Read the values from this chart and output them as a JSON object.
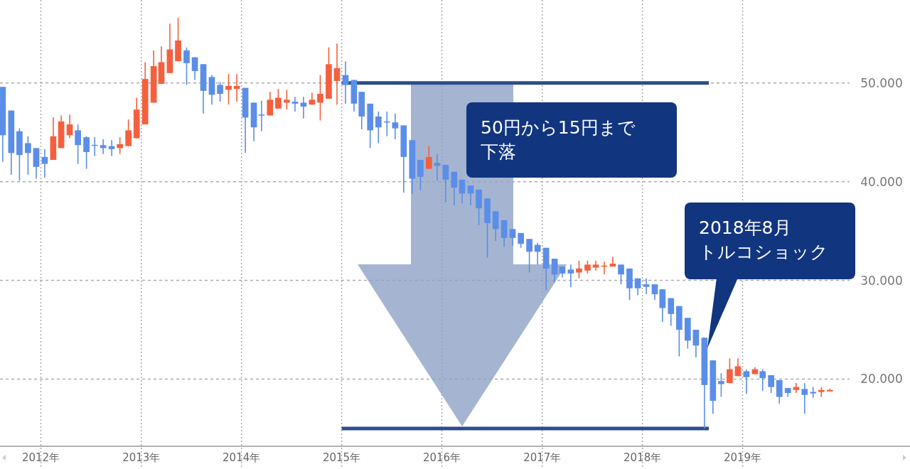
{
  "chart_data": {
    "type": "candlestick",
    "x": [
      "2011-08-15",
      "2011-09-15",
      "2011-10-15",
      "2011-11-15",
      "2011-12-15",
      "2012-01-15",
      "2012-02-15",
      "2012-03-15",
      "2012-04-15",
      "2012-05-15",
      "2012-06-15",
      "2012-07-15",
      "2012-08-15",
      "2012-09-15",
      "2012-10-15",
      "2012-11-15",
      "2012-12-15",
      "2013-01-15",
      "2013-02-15",
      "2013-03-15",
      "2013-04-15",
      "2013-05-15",
      "2013-06-15",
      "2013-07-15",
      "2013-08-15",
      "2013-09-15",
      "2013-10-15",
      "2013-11-15",
      "2013-12-15",
      "2014-01-15",
      "2014-02-15",
      "2014-03-15",
      "2014-04-15",
      "2014-05-15",
      "2014-06-15",
      "2014-07-15",
      "2014-08-15",
      "2014-09-15",
      "2014-10-15",
      "2014-11-15",
      "2014-12-15",
      "2015-01-15",
      "2015-02-15",
      "2015-03-15",
      "2015-04-15",
      "2015-05-15",
      "2015-06-15",
      "2015-07-15",
      "2015-08-15",
      "2015-09-15",
      "2015-10-15",
      "2015-11-15",
      "2015-12-15",
      "2016-01-15",
      "2016-02-15",
      "2016-03-15",
      "2016-04-15",
      "2016-05-15",
      "2016-06-15",
      "2016-07-15",
      "2016-08-15",
      "2016-09-15",
      "2016-10-15",
      "2016-11-15",
      "2016-12-15",
      "2017-01-15",
      "2017-02-15",
      "2017-03-15",
      "2017-04-15",
      "2017-05-15",
      "2017-06-15",
      "2017-07-15",
      "2017-08-15",
      "2017-09-15",
      "2017-10-15",
      "2017-11-15",
      "2017-12-15",
      "2018-01-15",
      "2018-02-15",
      "2018-03-15",
      "2018-04-15",
      "2018-05-15",
      "2018-06-15",
      "2018-07-15",
      "2018-08-15",
      "2018-09-15",
      "2018-10-15",
      "2018-11-15",
      "2018-12-15",
      "2019-01-15",
      "2019-02-15",
      "2019-03-15",
      "2019-04-15",
      "2019-05-15",
      "2019-06-15",
      "2019-07-15",
      "2019-08-15",
      "2019-09-15",
      "2019-10-15",
      "2019-11-15"
    ],
    "ohlc": [
      [
        49.6,
        49.6,
        42.0,
        44.7
      ],
      [
        47.2,
        47.2,
        40.7,
        42.9
      ],
      [
        45.1,
        45.4,
        40.1,
        42.7
      ],
      [
        43.9,
        44.6,
        40.7,
        42.9
      ],
      [
        43.4,
        43.4,
        40.3,
        41.5
      ],
      [
        42.5,
        43.3,
        40.4,
        41.8
      ],
      [
        42.2,
        46.5,
        42.2,
        44.6
      ],
      [
        43.4,
        46.7,
        43.4,
        46.1
      ],
      [
        44.7,
        46.8,
        44.4,
        45.8
      ],
      [
        45.2,
        45.8,
        41.8,
        43.7
      ],
      [
        44.5,
        44.6,
        41.3,
        43.0
      ],
      [
        43.73,
        44.5,
        42.6,
        43.65
      ],
      [
        43.7,
        44.3,
        42.8,
        43.4
      ],
      [
        43.6,
        44.2,
        42.6,
        43.3
      ],
      [
        43.4,
        44.5,
        42.8,
        43.8
      ],
      [
        43.6,
        46.3,
        43.6,
        45.2
      ],
      [
        44.4,
        48.5,
        44.4,
        47.3
      ],
      [
        45.8,
        52.1,
        45.8,
        50.4
      ],
      [
        48.0,
        53.3,
        48.0,
        51.7
      ],
      [
        49.9,
        53.7,
        49.9,
        52.1
      ],
      [
        51.0,
        56.0,
        51.0,
        53.4
      ],
      [
        52.2,
        56.6,
        52.2,
        54.3
      ],
      [
        53.3,
        53.6,
        49.8,
        52.0
      ],
      [
        52.6,
        52.6,
        50.3,
        51.2
      ],
      [
        51.9,
        51.9,
        46.9,
        49.2
      ],
      [
        50.6,
        50.8,
        47.8,
        48.8
      ],
      [
        49.8,
        50.1,
        48.1,
        48.9
      ],
      [
        49.3,
        50.9,
        47.8,
        49.7
      ],
      [
        49.4,
        50.9,
        48.1,
        49.7
      ],
      [
        49.5,
        49.5,
        42.9,
        46.5
      ],
      [
        48.0,
        48.0,
        44.1,
        45.5
      ],
      [
        46.8,
        48.2,
        45.1,
        46.7
      ],
      [
        46.7,
        49.1,
        46.7,
        48.3
      ],
      [
        47.4,
        49.4,
        47.4,
        48.5
      ],
      [
        48.0,
        49.3,
        47.3,
        48.3
      ],
      [
        48.1,
        48.6,
        47.1,
        47.9
      ],
      [
        48.0,
        48.6,
        46.4,
        47.6
      ],
      [
        47.8,
        49.0,
        47.8,
        48.3
      ],
      [
        48.0,
        50.8,
        46.2,
        48.9
      ],
      [
        48.4,
        53.6,
        48.4,
        51.9
      ],
      [
        50.2,
        54.0,
        47.8,
        51.5
      ],
      [
        50.8,
        52.2,
        47.9,
        49.8
      ],
      [
        50.3,
        50.3,
        47.1,
        47.9
      ],
      [
        49.1,
        49.1,
        45.3,
        46.6
      ],
      [
        47.9,
        47.9,
        43.4,
        45.2
      ],
      [
        46.6,
        47.1,
        43.9,
        45.5
      ],
      [
        46.1,
        47.1,
        44.6,
        46.0
      ],
      [
        46.0,
        46.9,
        44.3,
        45.4
      ],
      [
        45.7,
        45.7,
        38.9,
        42.5
      ],
      [
        44.2,
        44.2,
        38.8,
        40.3
      ],
      [
        42.2,
        42.2,
        39.1,
        40.5
      ],
      [
        41.3,
        43.6,
        41.3,
        42.5
      ],
      [
        41.9,
        42.8,
        40.1,
        41.6
      ],
      [
        41.7,
        41.7,
        37.9,
        40.2
      ],
      [
        41.0,
        41.0,
        37.6,
        39.4
      ],
      [
        40.2,
        40.2,
        37.8,
        38.8
      ],
      [
        39.6,
        39.6,
        37.6,
        38.8
      ],
      [
        39.2,
        39.2,
        35.6,
        37.3
      ],
      [
        38.3,
        38.3,
        32.3,
        35.8
      ],
      [
        37.0,
        37.0,
        34.0,
        35.2
      ],
      [
        36.1,
        36.1,
        33.4,
        34.3
      ],
      [
        35.2,
        35.2,
        33.5,
        34.3
      ],
      [
        34.8,
        34.8,
        33.3,
        33.7
      ],
      [
        34.2,
        34.2,
        30.8,
        32.9
      ],
      [
        33.6,
        33.8,
        31.6,
        32.9
      ],
      [
        33.3,
        33.3,
        29.0,
        31.2
      ],
      [
        32.2,
        32.2,
        29.8,
        30.6
      ],
      [
        31.4,
        31.4,
        30.3,
        30.7
      ],
      [
        31.1,
        31.6,
        29.3,
        30.7
      ],
      [
        30.8,
        32.0,
        30.2,
        31.2
      ],
      [
        31.0,
        32.0,
        30.7,
        31.6
      ],
      [
        31.3,
        32.0,
        31.0,
        31.6
      ],
      [
        31.4,
        31.9,
        30.6,
        31.5
      ],
      [
        31.4,
        32.4,
        31.4,
        31.7
      ],
      [
        31.6,
        31.6,
        29.6,
        30.6
      ],
      [
        31.2,
        31.2,
        28.0,
        29.2
      ],
      [
        30.2,
        30.2,
        28.5,
        29.2
      ],
      [
        29.6,
        30.2,
        28.6,
        29.35
      ],
      [
        29.6,
        29.6,
        28.0,
        28.6
      ],
      [
        29.1,
        29.1,
        25.8,
        27.2
      ],
      [
        28.2,
        28.2,
        25.4,
        26.6
      ],
      [
        27.4,
        27.4,
        22.3,
        25.0
      ],
      [
        26.2,
        26.2,
        23.1,
        23.9
      ],
      [
        25.0,
        25.0,
        22.2,
        23.4
      ],
      [
        24.2,
        24.2,
        15.0,
        19.4
      ],
      [
        21.9,
        21.9,
        16.5,
        17.8
      ],
      [
        19.8,
        20.6,
        18.2,
        19.5
      ],
      [
        19.6,
        22.1,
        19.6,
        21.0
      ],
      [
        20.3,
        22.1,
        20.3,
        21.3
      ],
      [
        20.8,
        21.0,
        18.5,
        20.2
      ],
      [
        20.5,
        21.2,
        20.5,
        21.0
      ],
      [
        20.8,
        21.0,
        18.8,
        20.1
      ],
      [
        20.4,
        20.4,
        18.6,
        19.2
      ],
      [
        19.9,
        19.9,
        17.5,
        18.2
      ],
      [
        19.1,
        19.1,
        18.2,
        18.6
      ],
      [
        18.9,
        19.6,
        18.6,
        19.2
      ],
      [
        19.0,
        19.6,
        16.5,
        18.4
      ],
      [
        18.7,
        19.2,
        18.1,
        18.55
      ],
      [
        18.7,
        19.2,
        18.2,
        18.9
      ],
      [
        18.75,
        19.05,
        18.75,
        18.9
      ]
    ],
    "colors": [
      "#5b8ee8",
      "#5b8ee8",
      "#5b8ee8",
      "#5b8ee8",
      "#5b8ee8",
      "#5b8ee8",
      "#f4603e",
      "#f4603e",
      "#f4603e",
      "#5b8ee8",
      "#5b8ee8",
      "#5b8ee8",
      "#5b8ee8",
      "#5b8ee8",
      "#f4603e",
      "#f4603e",
      "#f4603e",
      "#f4603e",
      "#f4603e",
      "#f4603e",
      "#f4603e",
      "#f4603e",
      "#5b8ee8",
      "#5b8ee8",
      "#5b8ee8",
      "#5b8ee8",
      "#5b8ee8",
      "#f4603e",
      "#f4603e",
      "#5b8ee8",
      "#5b8ee8",
      "#5b8ee8",
      "#f4603e",
      "#f4603e",
      "#f4603e",
      "#5b8ee8",
      "#5b8ee8",
      "#f4603e",
      "#f4603e",
      "#f4603e",
      "#f4603e",
      "#5b8ee8",
      "#5b8ee8",
      "#5b8ee8",
      "#5b8ee8",
      "#5b8ee8",
      "#5b8ee8",
      "#5b8ee8",
      "#5b8ee8",
      "#5b8ee8",
      "#5b8ee8",
      "#f4603e",
      "#5b8ee8",
      "#5b8ee8",
      "#5b8ee8",
      "#5b8ee8",
      "#5b8ee8",
      "#5b8ee8",
      "#5b8ee8",
      "#5b8ee8",
      "#5b8ee8",
      "#5b8ee8",
      "#5b8ee8",
      "#5b8ee8",
      "#5b8ee8",
      "#5b8ee8",
      "#5b8ee8",
      "#5b8ee8",
      "#5b8ee8",
      "#f4603e",
      "#f4603e",
      "#f4603e",
      "#f4603e",
      "#f4603e",
      "#5b8ee8",
      "#5b8ee8",
      "#5b8ee8",
      "#5b8ee8",
      "#5b8ee8",
      "#5b8ee8",
      "#5b8ee8",
      "#5b8ee8",
      "#5b8ee8",
      "#5b8ee8",
      "#5b8ee8",
      "#5b8ee8",
      "#5b8ee8",
      "#f4603e",
      "#f4603e",
      "#5b8ee8",
      "#f4603e",
      "#5b8ee8",
      "#5b8ee8",
      "#5b8ee8",
      "#5b8ee8",
      "#f4603e",
      "#5b8ee8",
      "#5b8ee8",
      "#f4603e",
      "#f4603e"
    ],
    "series": [
      {
        "type": "line",
        "color": "#2c4d8a",
        "x": [
          "2015-01-01",
          "2018-08-31"
        ],
        "values": [
          50,
          50
        ]
      },
      {
        "type": "line",
        "color": "#2c4d8a",
        "x": [
          "2015-01-01",
          "2018-08-31"
        ],
        "values": [
          15,
          15
        ]
      }
    ],
    "xlim": [
      "2011-08-05",
      "2020-09-02"
    ],
    "xticks": [
      {
        "value": "2012-01-01",
        "label": "2012年"
      },
      {
        "value": "2013-01-01",
        "label": "2013年"
      },
      {
        "value": "2014-01-01",
        "label": "2014年"
      },
      {
        "value": "2015-01-01",
        "label": "2015年"
      },
      {
        "value": "2016-01-01",
        "label": "2016年"
      },
      {
        "value": "2017-01-01",
        "label": "2017年"
      },
      {
        "value": "2018-01-01",
        "label": "2018年"
      },
      {
        "value": "2019-01-01",
        "label": "2019年"
      }
    ],
    "ylim": [
      13.2,
      58.4
    ],
    "yticks": [
      {
        "value": 20,
        "label": "20.000"
      },
      {
        "value": 30,
        "label": "30.000"
      },
      {
        "value": 40,
        "label": "40.000"
      },
      {
        "value": 50,
        "label": "50.000"
      }
    ],
    "grid": true,
    "annotations": [
      "50円から15円まで",
      "下落",
      "2018年8月",
      "トルコショック"
    ]
  }
}
